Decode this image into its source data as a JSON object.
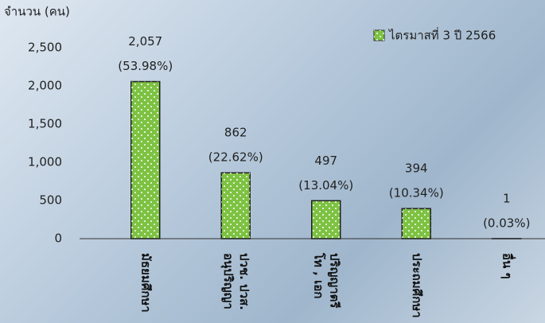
{
  "chart_data": {
    "type": "bar",
    "y_label": "จำนวน (คน)",
    "categories": [
      [
        "มัธยมศึกษา"
      ],
      [
        "ปวช. ปวส.",
        "อนุปริญญา"
      ],
      [
        "ปริญญาตรี",
        "โท , เอก"
      ],
      [
        "ประถมศึกษา"
      ],
      [
        "อื่น ๆ"
      ]
    ],
    "series": [
      {
        "name": "ไตรมาสที่ 3  ปี 2566",
        "color": "#7dc242",
        "values": [
          2057,
          862,
          497,
          394,
          1
        ],
        "value_labels": [
          "2,057",
          "862",
          "497",
          "394",
          "1"
        ],
        "percent_labels": [
          "(53.98%)",
          "(22.62%)",
          "(13.04%)",
          "(10.34%)",
          "(0.03%)"
        ]
      }
    ],
    "ylim": [
      0,
      2500
    ],
    "yticks": [
      0,
      500,
      {
        "value": 1000,
        "label": "1,000"
      },
      {
        "value": 1500,
        "label": "1,500"
      },
      {
        "value": 2000,
        "label": "2,000"
      },
      {
        "value": 2500,
        "label": "2,500"
      }
    ],
    "grid": false,
    "legend": "top-right"
  }
}
